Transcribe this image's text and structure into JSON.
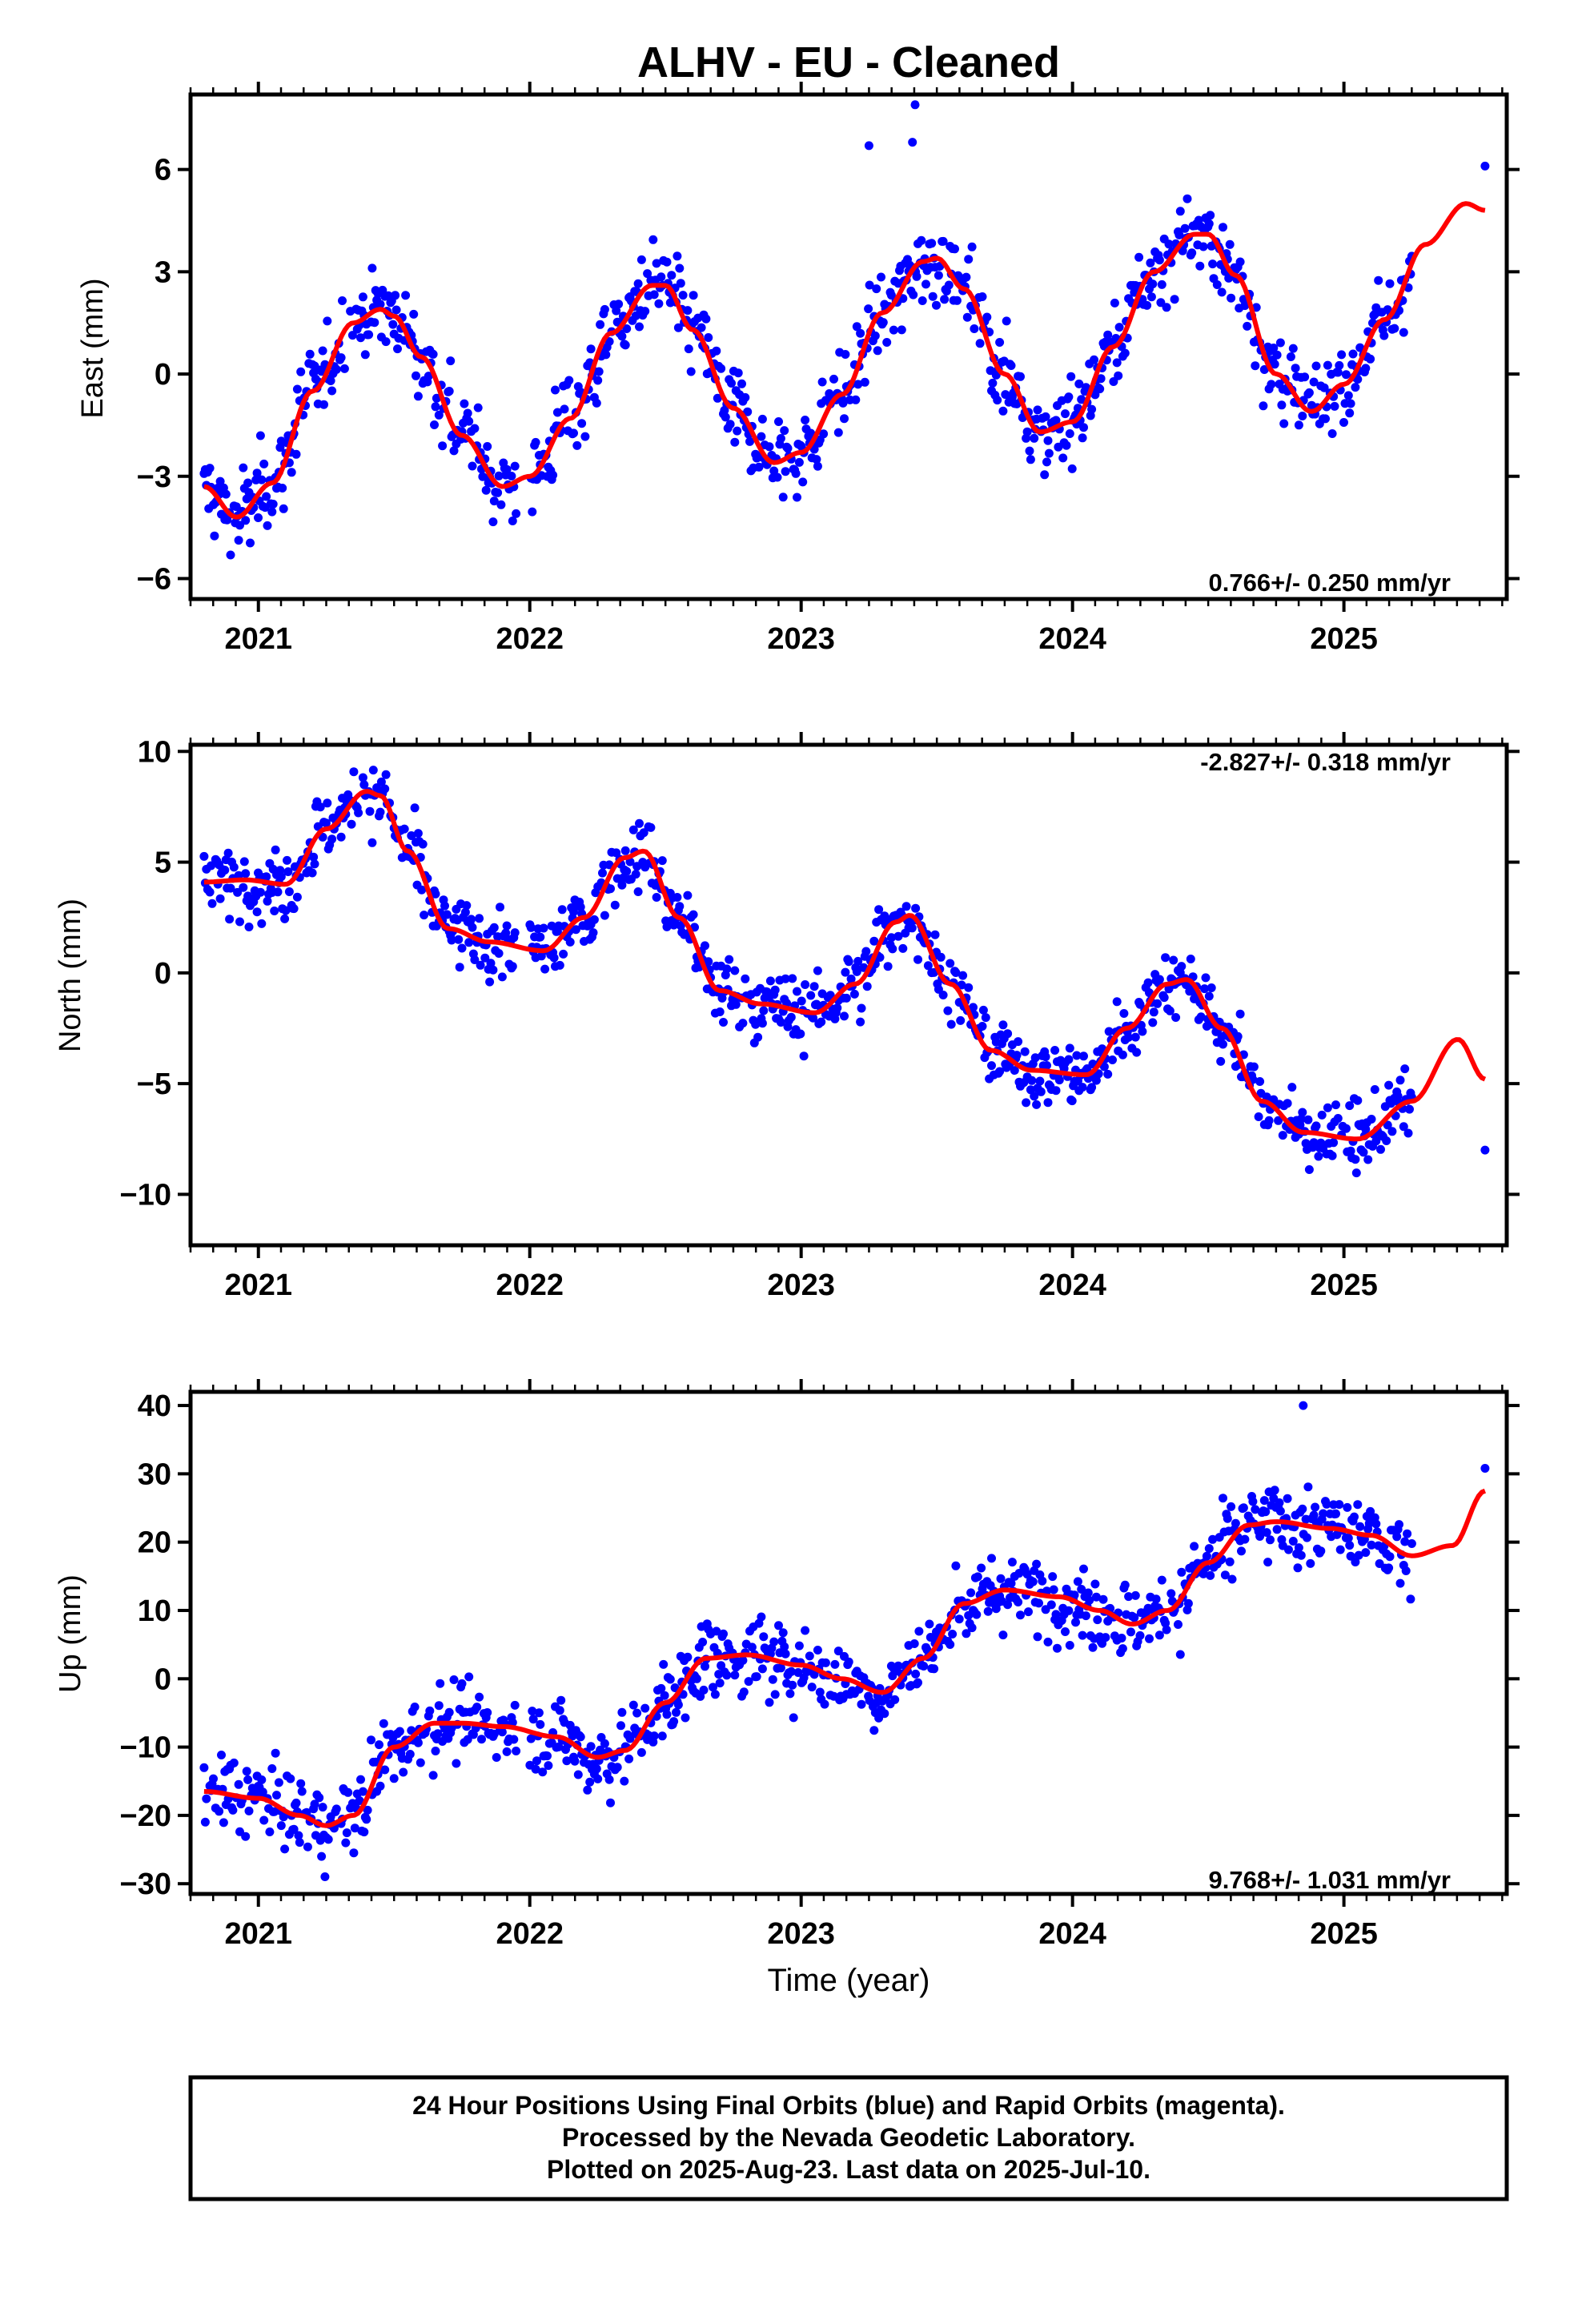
{
  "title": "ALHV  - EU - Cleaned",
  "colors": {
    "points": "#0000ff",
    "fit": "#ff0000",
    "frame": "#000000"
  },
  "footer": {
    "line1": "24 Hour Positions Using Final Orbits (blue) and Rapid Orbits (magenta).",
    "line2": "Processed by the Nevada Geodetic Laboratory.",
    "line3": "Plotted on 2025-Aug-23. Last data on 2025-Jul-10."
  },
  "chart_data": [
    {
      "type": "scatter",
      "ylabel": "East (mm)",
      "xlabel": "",
      "xlim": [
        2020.75,
        2025.6
      ],
      "ylim": [
        -6.6,
        8.2
      ],
      "yticks": [
        -6,
        -3,
        0,
        3,
        6
      ],
      "ytick_labels": [
        "−6",
        "−3",
        "0",
        "3",
        "6"
      ],
      "xticks": [
        2021,
        2022,
        2023,
        2024,
        2025
      ],
      "xtick_labels": [
        "2021",
        "2022",
        "2023",
        "2024",
        "2025"
      ],
      "rate_text": "0.766+/- 0.250 mm/yr",
      "rate_position": "bottom-right",
      "fit_x": [
        2020.8,
        2020.92,
        2021.05,
        2021.2,
        2021.35,
        2021.45,
        2021.5,
        2021.6,
        2021.75,
        2021.9,
        2022.0,
        2022.15,
        2022.3,
        2022.45,
        2022.5,
        2022.6,
        2022.75,
        2022.9,
        2023.0,
        2023.15,
        2023.3,
        2023.45,
        2023.5,
        2023.6,
        2023.75,
        2023.88,
        2024.0,
        2024.15,
        2024.3,
        2024.45,
        2024.5,
        2024.6,
        2024.75,
        2024.88,
        2025.0,
        2025.15,
        2025.3,
        2025.45,
        2025.52
      ],
      "fit_y": [
        -3.3,
        -4.2,
        -3.2,
        -0.5,
        1.5,
        1.9,
        1.7,
        0.5,
        -1.8,
        -3.3,
        -3.0,
        -1.3,
        1.2,
        2.6,
        2.6,
        1.3,
        -1.0,
        -2.6,
        -2.3,
        -0.6,
        1.8,
        3.3,
        3.4,
        2.5,
        0.0,
        -1.7,
        -1.4,
        0.8,
        3.0,
        4.1,
        4.1,
        2.9,
        0.0,
        -1.1,
        -0.3,
        1.6,
        3.8,
        5.0,
        4.8
      ],
      "points": {
        "x_start": 2020.8,
        "x_end": 2025.25,
        "gap": [
          2021.95,
          2022.0
        ],
        "extra_x": [
          2023.25,
          2023.41,
          2023.42,
          2025.52
        ],
        "extra_y": [
          6.7,
          6.8,
          7.9,
          6.1
        ],
        "spread": 1.0,
        "count": 1050
      }
    },
    {
      "type": "scatter",
      "ylabel": "North (mm)",
      "xlabel": "",
      "xlim": [
        2020.75,
        2025.6
      ],
      "ylim": [
        -12.3,
        10.3
      ],
      "yticks": [
        -10,
        -5,
        0,
        5,
        10
      ],
      "ytick_labels": [
        "−10",
        "−5",
        "0",
        "5",
        "10"
      ],
      "xticks": [
        2021,
        2022,
        2023,
        2024,
        2025
      ],
      "xtick_labels": [
        "2021",
        "2022",
        "2023",
        "2024",
        "2025"
      ],
      "rate_text": "-2.827+/- 0.318 mm/yr",
      "rate_position": "top-right",
      "fit_x": [
        2020.8,
        2020.95,
        2021.1,
        2021.25,
        2021.4,
        2021.45,
        2021.55,
        2021.7,
        2021.85,
        2022.05,
        2022.2,
        2022.35,
        2022.42,
        2022.55,
        2022.7,
        2022.85,
        2023.05,
        2023.2,
        2023.35,
        2023.4,
        2023.55,
        2023.7,
        2023.85,
        2024.05,
        2024.2,
        2024.35,
        2024.42,
        2024.55,
        2024.7,
        2024.85,
        2025.05,
        2025.25,
        2025.42,
        2025.52
      ],
      "fit_y": [
        4.1,
        4.2,
        4.0,
        6.5,
        8.2,
        8.0,
        5.5,
        2.0,
        1.4,
        1.0,
        2.5,
        5.2,
        5.5,
        2.5,
        -0.8,
        -1.4,
        -1.8,
        -0.5,
        2.3,
        2.6,
        -0.5,
        -3.5,
        -4.4,
        -4.6,
        -2.5,
        -0.5,
        -0.3,
        -2.5,
        -5.8,
        -7.2,
        -7.5,
        -5.8,
        -3.0,
        -4.8
      ],
      "points": {
        "x_start": 2020.8,
        "x_end": 2025.25,
        "gap": [
          2021.95,
          2022.0
        ],
        "extra_x": [
          2025.52
        ],
        "extra_y": [
          -8.0
        ],
        "spread": 1.35,
        "count": 1050
      }
    },
    {
      "type": "scatter",
      "ylabel": "Up (mm)",
      "xlabel": "Time (year)",
      "xlim": [
        2020.75,
        2025.6
      ],
      "ylim": [
        -31.5,
        42
      ],
      "yticks": [
        -30,
        -20,
        -10,
        0,
        10,
        20,
        30,
        40
      ],
      "ytick_labels": [
        "−30",
        "−20",
        "−10",
        "0",
        "10",
        "20",
        "30",
        "40"
      ],
      "xticks": [
        2021,
        2022,
        2023,
        2024,
        2025
      ],
      "xtick_labels": [
        "2021",
        "2022",
        "2023",
        "2024",
        "2025"
      ],
      "rate_text": "9.768+/- 1.031 mm/yr",
      "rate_position": "bottom-right",
      "fit_x": [
        2020.8,
        2021.0,
        2021.15,
        2021.25,
        2021.35,
        2021.5,
        2021.65,
        2021.75,
        2021.9,
        2022.1,
        2022.25,
        2022.35,
        2022.5,
        2022.65,
        2022.8,
        2023.0,
        2023.15,
        2023.3,
        2023.45,
        2023.6,
        2023.75,
        2023.95,
        2024.1,
        2024.22,
        2024.35,
        2024.5,
        2024.65,
        2024.75,
        2024.95,
        2025.1,
        2025.25,
        2025.4,
        2025.52
      ],
      "fit_y": [
        -16.5,
        -17.5,
        -20.0,
        -21.5,
        -20.0,
        -10.0,
        -6.5,
        -6.5,
        -7.0,
        -8.5,
        -11.5,
        -10.5,
        -3.5,
        3.0,
        3.5,
        2.0,
        0.0,
        -2.0,
        3.0,
        11.0,
        13.0,
        12.0,
        10.0,
        8.0,
        10.0,
        17.0,
        22.5,
        23.0,
        22.0,
        21.0,
        18.0,
        19.5,
        27.5
      ],
      "points": {
        "x_start": 2020.8,
        "x_end": 2025.25,
        "gap": [
          2021.95,
          2022.0
        ],
        "extra_x": [
          2024.85,
          2025.52
        ],
        "extra_y": [
          40.0,
          30.8
        ],
        "spread": 4.8,
        "count": 1050
      }
    }
  ]
}
